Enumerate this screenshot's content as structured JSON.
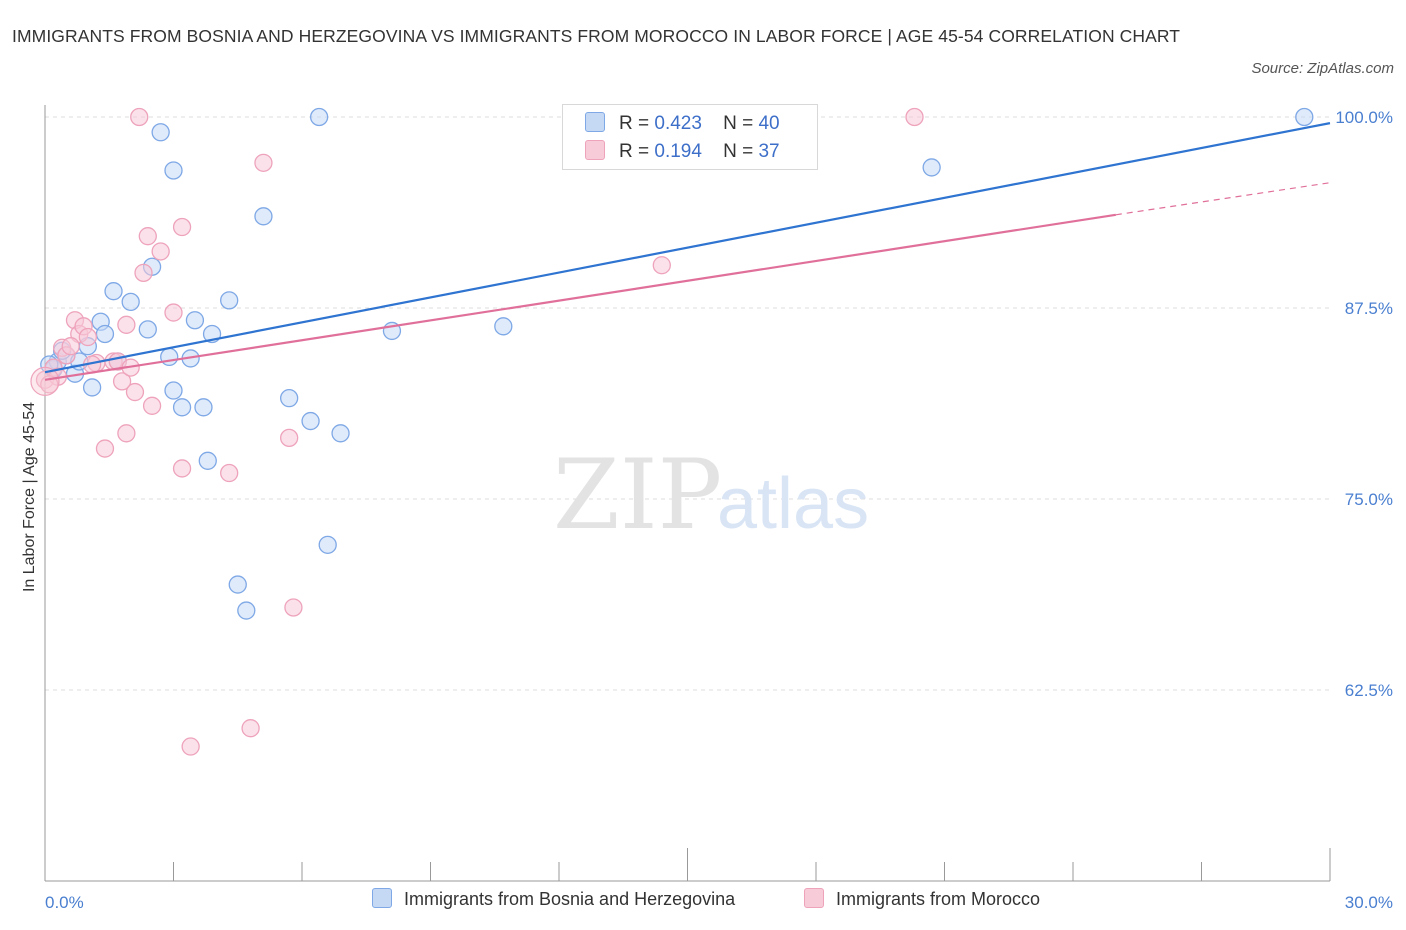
{
  "title": "IMMIGRANTS FROM BOSNIA AND HERZEGOVINA VS IMMIGRANTS FROM MOROCCO IN LABOR FORCE | AGE 45-54 CORRELATION CHART",
  "source": "Source: ZipAtlas.com",
  "watermark": {
    "zip": "ZIP",
    "atlas": "atlas"
  },
  "legend": {
    "r_label": "R =",
    "n_label": "N =",
    "rows": [
      {
        "r": "0.423",
        "n": "40"
      },
      {
        "r": "0.194",
        "n": "37"
      }
    ]
  },
  "chart_data": {
    "type": "scatter",
    "xlabel": "",
    "ylabel": "In Labor Force | Age 45-54",
    "xlim": [
      0,
      30
    ],
    "ylim": [
      50,
      100
    ],
    "x_tick_labels": [
      "0.0%",
      "30.0%"
    ],
    "y_ticks": [
      62.5,
      75.0,
      87.5,
      100.0
    ],
    "y_tick_labels": [
      "62.5%",
      "75.0%",
      "87.5%",
      "100.0%"
    ],
    "grid": true,
    "legend_position": "top-center",
    "series": [
      {
        "name": "Immigrants from Bosnia and Herzegovina",
        "color": "#7ea8e6",
        "fill": "#c5d9f5",
        "line_color": "#2e74d0",
        "trend": {
          "x0": 0,
          "y0": 83.3,
          "x1": 30,
          "y1": 99.6
        },
        "points": [
          [
            0.2,
            83.5
          ],
          [
            0.3,
            84.0
          ],
          [
            0.5,
            84.4
          ],
          [
            0.7,
            83.2
          ],
          [
            0.8,
            84.0
          ],
          [
            1.1,
            82.3
          ],
          [
            1.3,
            86.6
          ],
          [
            1.4,
            85.8
          ],
          [
            1.6,
            88.6
          ],
          [
            1.7,
            84.0
          ],
          [
            2.0,
            87.9
          ],
          [
            2.4,
            86.1
          ],
          [
            2.5,
            90.2
          ],
          [
            2.7,
            99.0
          ],
          [
            2.9,
            84.3
          ],
          [
            3.0,
            82.1
          ],
          [
            3.0,
            96.5
          ],
          [
            3.2,
            81.0
          ],
          [
            3.4,
            84.2
          ],
          [
            3.5,
            86.7
          ],
          [
            3.7,
            81.0
          ],
          [
            3.8,
            77.5
          ],
          [
            3.9,
            85.8
          ],
          [
            4.3,
            88.0
          ],
          [
            4.5,
            69.4
          ],
          [
            4.7,
            67.7
          ],
          [
            5.1,
            93.5
          ],
          [
            5.7,
            81.6
          ],
          [
            6.2,
            80.1
          ],
          [
            6.4,
            100.0
          ],
          [
            6.6,
            72.0
          ],
          [
            6.9,
            79.3
          ],
          [
            8.1,
            86.0
          ],
          [
            10.7,
            86.3
          ],
          [
            15.4,
            100.0
          ],
          [
            20.7,
            96.7
          ],
          [
            29.4,
            100.0
          ],
          [
            0.1,
            83.8
          ],
          [
            0.4,
            84.7
          ],
          [
            1.0,
            85.0
          ]
        ]
      },
      {
        "name": "Immigrants from Morocco",
        "color": "#eea3bb",
        "fill": "#f8cbd8",
        "line_color": "#e0709a",
        "trend": {
          "x0": 0,
          "y0": 82.8,
          "x1": 25,
          "y1": 93.6
        },
        "trend_dashed": {
          "x0": 25,
          "y0": 93.6,
          "x1": 30,
          "y1": 95.7
        },
        "points": [
          [
            0.0,
            82.8
          ],
          [
            0.2,
            83.6
          ],
          [
            0.4,
            84.9
          ],
          [
            0.5,
            84.4
          ],
          [
            0.7,
            86.7
          ],
          [
            0.8,
            85.8
          ],
          [
            0.9,
            86.3
          ],
          [
            1.0,
            85.6
          ],
          [
            1.2,
            83.9
          ],
          [
            1.4,
            78.3
          ],
          [
            1.6,
            84.0
          ],
          [
            1.7,
            84.0
          ],
          [
            1.8,
            82.7
          ],
          [
            1.9,
            86.4
          ],
          [
            1.9,
            79.3
          ],
          [
            2.0,
            83.6
          ],
          [
            2.1,
            82.0
          ],
          [
            2.2,
            100.0
          ],
          [
            2.3,
            89.8
          ],
          [
            2.4,
            92.2
          ],
          [
            2.5,
            81.1
          ],
          [
            2.7,
            91.2
          ],
          [
            3.0,
            87.2
          ],
          [
            3.2,
            92.8
          ],
          [
            3.2,
            77.0
          ],
          [
            3.4,
            58.8
          ],
          [
            4.3,
            76.7
          ],
          [
            4.8,
            60.0
          ],
          [
            5.1,
            97.0
          ],
          [
            5.7,
            79.0
          ],
          [
            5.8,
            67.9
          ],
          [
            14.4,
            90.3
          ],
          [
            20.3,
            100.0
          ],
          [
            0.3,
            83.0
          ],
          [
            0.6,
            85.0
          ],
          [
            1.1,
            83.8
          ],
          [
            0.1,
            82.5
          ]
        ]
      }
    ]
  }
}
